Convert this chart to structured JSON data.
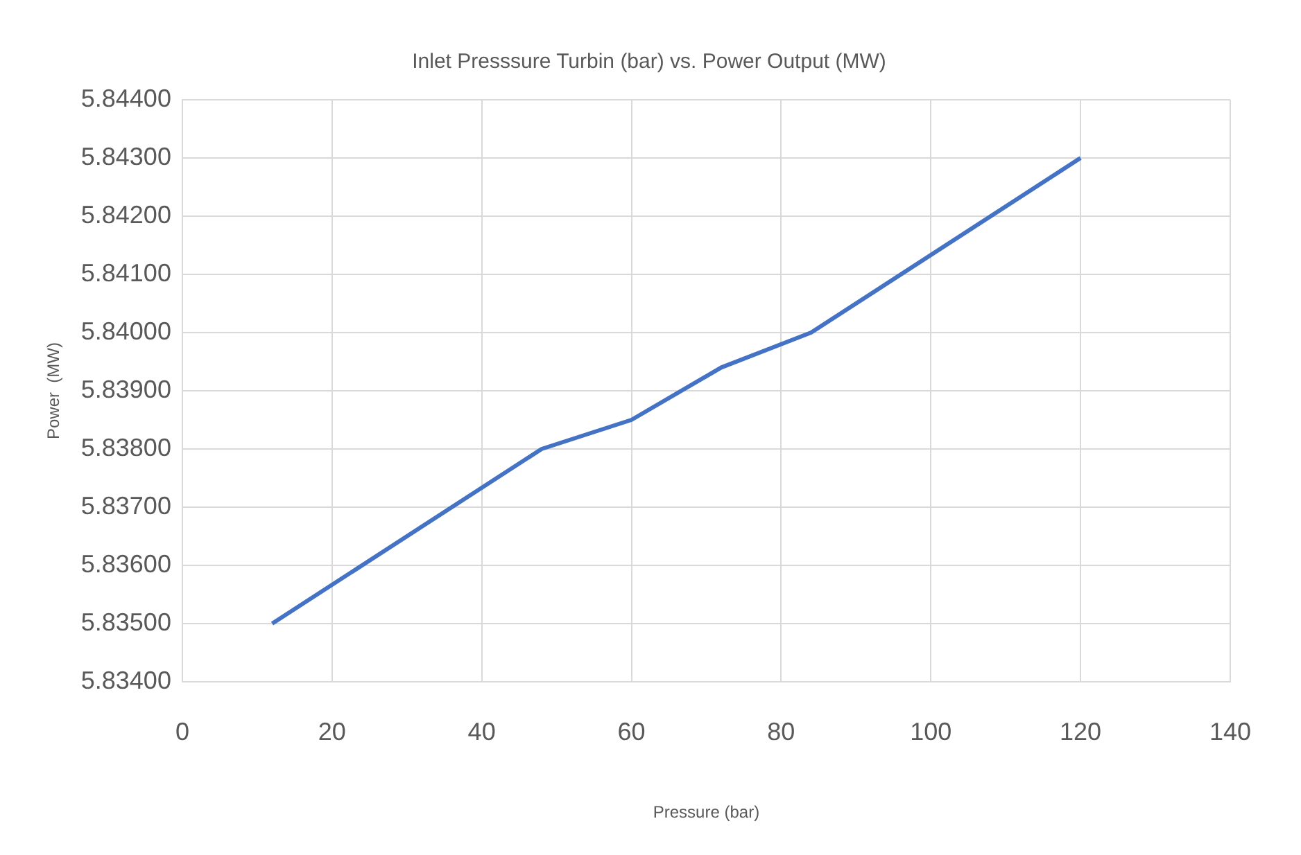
{
  "chart_data": {
    "type": "line",
    "title": "Inlet Presssure Turbin (bar) vs. Power Output (MW)",
    "xlabel": "Pressure (bar)",
    "ylabel": "Power  (MW)",
    "x": [
      12,
      48,
      60,
      72,
      84,
      120
    ],
    "series": [
      {
        "color": "#4472c4",
        "values": [
          5.835,
          5.838,
          5.8385,
          5.8394,
          5.84,
          5.843
        ]
      }
    ],
    "xlim": [
      0,
      140
    ],
    "xticks": [
      0,
      20,
      40,
      60,
      80,
      100,
      120,
      140
    ],
    "ylim": [
      5.834,
      5.844
    ],
    "yticks": [
      {
        "value": 5.834,
        "label": "5.83400"
      },
      {
        "value": 5.835,
        "label": "5.83500"
      },
      {
        "value": 5.836,
        "label": "5.83600"
      },
      {
        "value": 5.837,
        "label": "5.83700"
      },
      {
        "value": 5.838,
        "label": "5.83800"
      },
      {
        "value": 5.839,
        "label": "5.83900"
      },
      {
        "value": 5.84,
        "label": "5.84000"
      },
      {
        "value": 5.841,
        "label": "5.84100"
      },
      {
        "value": 5.842,
        "label": "5.84200"
      },
      {
        "value": 5.843,
        "label": "5.84300"
      },
      {
        "value": 5.844,
        "label": "5.84400"
      }
    ],
    "grid": true,
    "legend": false,
    "marker": "none",
    "line_style": "solid"
  }
}
